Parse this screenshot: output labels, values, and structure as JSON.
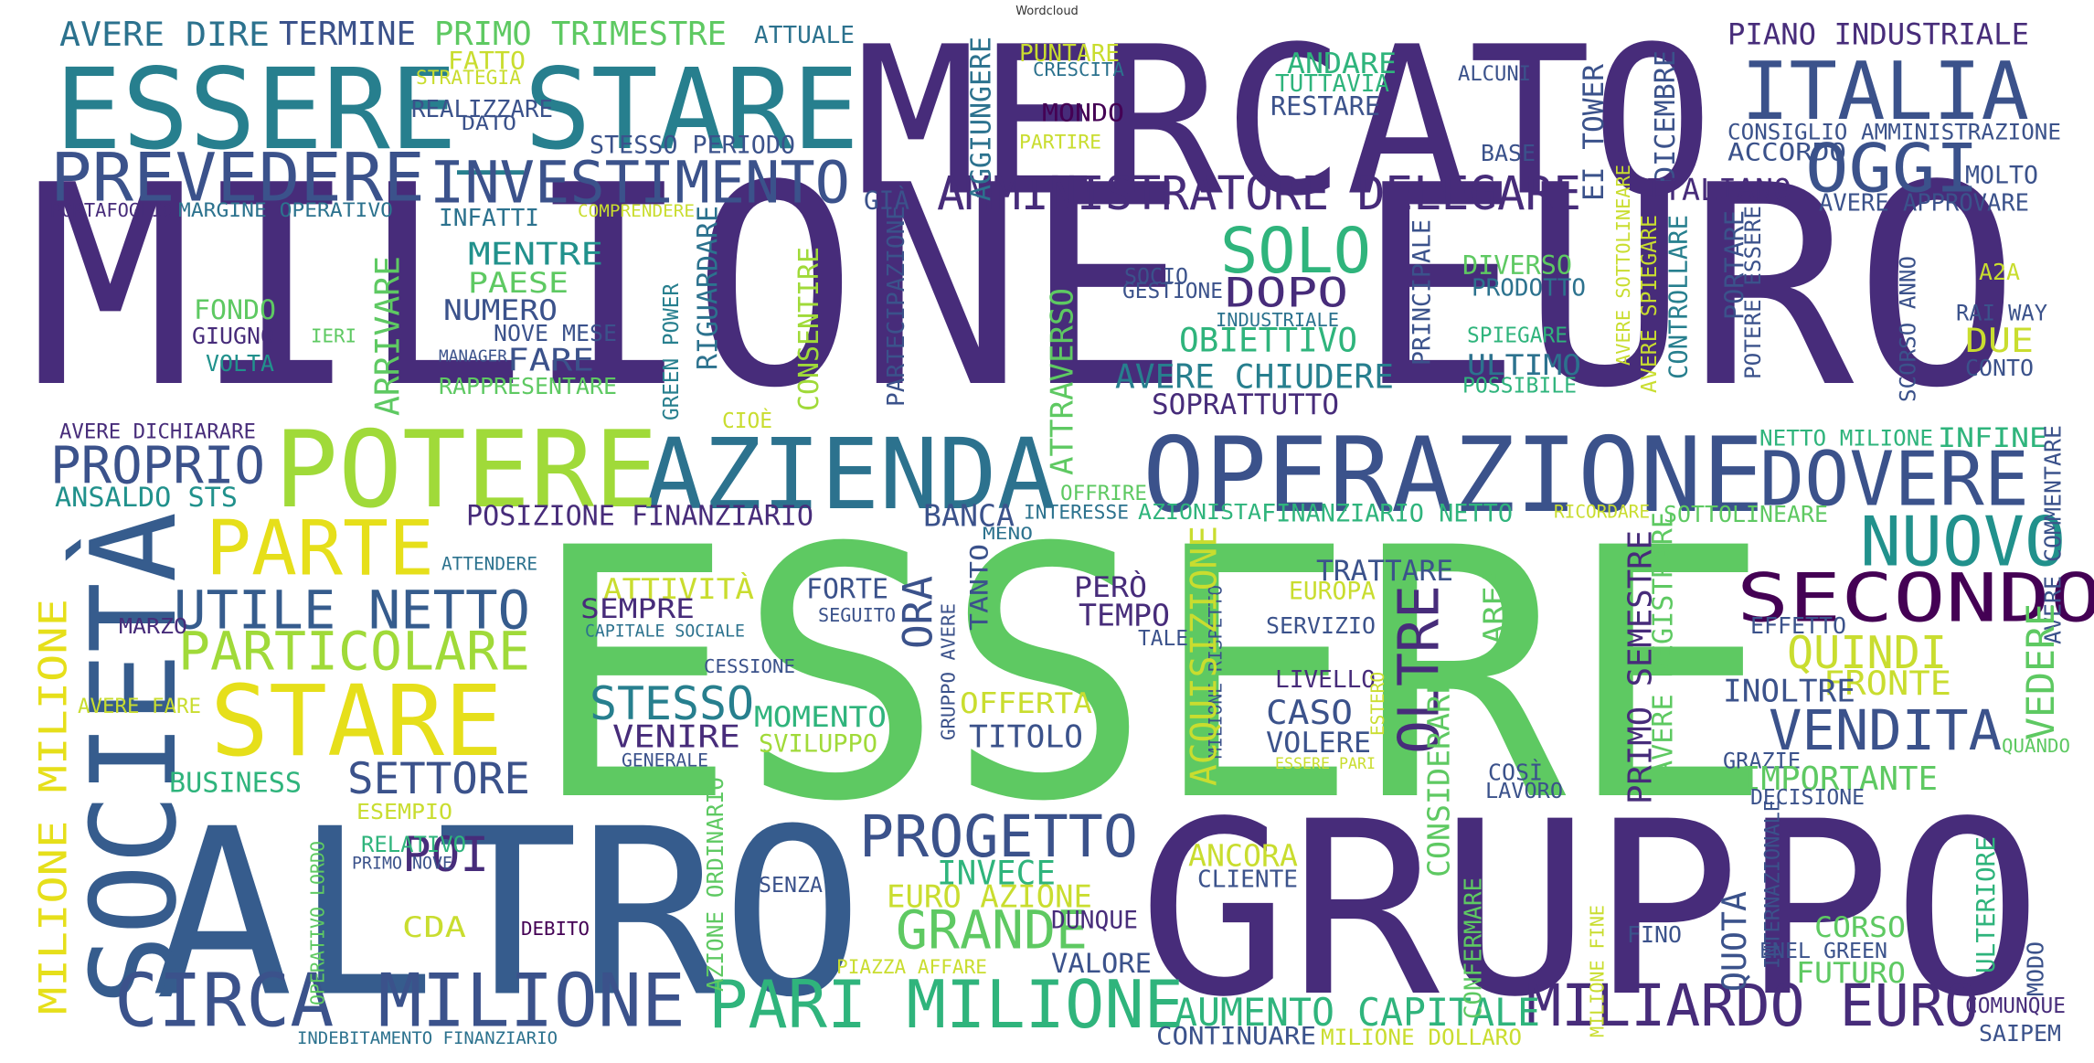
{
  "title": "Wordcloud",
  "palette": {
    "deep": "#472c7a",
    "indigo": "#46327e",
    "blue": "#365c8d",
    "teal": "#277f8e",
    "green": "#1fa187",
    "lime": "#5ec962",
    "yellow": "#c9dd2f",
    "gold": "#e6df1a",
    "dark": "#440154"
  },
  "words": [
    {
      "text": "MILIONE EURO",
      "color": "#472c7a"
    },
    {
      "text": "ESSERE",
      "color": "#5ec962"
    },
    {
      "text": "MERCATO",
      "color": "#472c7a"
    },
    {
      "text": "GRUPPO",
      "color": "#472c7a"
    },
    {
      "text": "ALTRO",
      "color": "#365c8d"
    },
    {
      "text": "ESSERE_STARE",
      "color": "#277f8e"
    },
    {
      "text": "SOCIETÀ",
      "color": "#365c8d"
    },
    {
      "text": "ITALIA",
      "color": "#3b528b"
    },
    {
      "text": "OPERAZIONE",
      "color": "#3b528b"
    },
    {
      "text": "AZIENDA",
      "color": "#2c728e"
    },
    {
      "text": "POTERE",
      "color": "#a0da39"
    },
    {
      "text": "STARE",
      "color": "#e6df1a"
    },
    {
      "text": "PARTE",
      "color": "#e6df1a"
    },
    {
      "text": "CIRCA MILIONE",
      "color": "#3b528b"
    },
    {
      "text": "PARI MILIONE",
      "color": "#2fb47c"
    },
    {
      "text": "PREVEDERE",
      "color": "#3b528b"
    },
    {
      "text": "INVESTIMENTO",
      "color": "#3b528b"
    },
    {
      "text": "AMMINISTRATORE DELEGARE",
      "color": "#472c7a"
    },
    {
      "text": "SECONDO",
      "color": "#440154"
    },
    {
      "text": "MILIARDO EURO",
      "color": "#472c7a"
    },
    {
      "text": "NUOVO",
      "color": "#21918c"
    },
    {
      "text": "DOVERE",
      "color": "#3b528b"
    },
    {
      "text": "OGGI",
      "color": "#3b528b"
    },
    {
      "text": "SOLO",
      "color": "#2fb47c"
    },
    {
      "text": "PROGETTO",
      "color": "#3b528b"
    },
    {
      "text": "UTILE NETTO",
      "color": "#365c8d"
    },
    {
      "text": "PARTICOLARE",
      "color": "#a0da39"
    },
    {
      "text": "PROPRIO",
      "color": "#3b528b"
    },
    {
      "text": "VENDITA",
      "color": "#3b528b"
    },
    {
      "text": "GRANDE",
      "color": "#5ec962"
    },
    {
      "text": "OLTRE",
      "color": "#472c7a"
    },
    {
      "text": "MILIONE MILIONE",
      "color": "#e6df1a"
    },
    {
      "text": "AUMENTO CAPITALE",
      "color": "#2fb47c"
    },
    {
      "text": "STESSO",
      "color": "#277f8e"
    },
    {
      "text": "SETTORE",
      "color": "#3b528b"
    },
    {
      "text": "POI",
      "color": "#472c7a"
    },
    {
      "text": "AVERE DIRE",
      "color": "#2c728e"
    },
    {
      "text": "TERMINE",
      "color": "#3b528b"
    },
    {
      "text": "PRIMO TRIMESTRE",
      "color": "#5ec962"
    },
    {
      "text": "ATTUALE",
      "color": "#2c728e"
    },
    {
      "text": "PIANO INDUSTRIALE",
      "color": "#472c7a"
    },
    {
      "text": "FATTO",
      "color": "#c9dd2f"
    },
    {
      "text": "STRATEGIA",
      "color": "#c9dd2f"
    },
    {
      "text": "REALIZZARE",
      "color": "#3b528b"
    },
    {
      "text": "DATO",
      "color": "#3b528b"
    },
    {
      "text": "STESSO PERIODO",
      "color": "#3b528b"
    },
    {
      "text": "PUNTARE",
      "color": "#c9dd2f"
    },
    {
      "text": "CRESCITA",
      "color": "#2c728e"
    },
    {
      "text": "ANDARE",
      "color": "#2fb47c"
    },
    {
      "text": "TUTTAVIA",
      "color": "#2fb47c"
    },
    {
      "text": "RESTARE",
      "color": "#3b528b"
    },
    {
      "text": "ALCUNI",
      "color": "#3b528b"
    },
    {
      "text": "MONDO",
      "color": "#440154"
    },
    {
      "text": "PARTIRE",
      "color": "#c9dd2f"
    },
    {
      "text": "AGGIUNGERE",
      "color": "#2c728e"
    },
    {
      "text": "BASE",
      "color": "#3b528b"
    },
    {
      "text": "EI TOWER",
      "color": "#3b528b"
    },
    {
      "text": "DICEMBRE",
      "color": "#3b528b"
    },
    {
      "text": "CONSIGLIO AMMINISTRAZIONE",
      "color": "#3b528b"
    },
    {
      "text": "ACCORDO",
      "color": "#3b528b"
    },
    {
      "text": "MOLTO",
      "color": "#3b528b"
    },
    {
      "text": "AVERE APPROVARE",
      "color": "#3b528b"
    },
    {
      "text": "PORTAFOGLIO",
      "color": "#472c7a"
    },
    {
      "text": "MARGINE OPERATIVO",
      "color": "#2c728e"
    },
    {
      "text": "COMPRENDERE",
      "color": "#c9dd2f"
    },
    {
      "text": "INFATTI",
      "color": "#2c728e"
    },
    {
      "text": "GIÀ",
      "color": "#3b528b"
    },
    {
      "text": "ITALIANO",
      "color": "#472c7a"
    },
    {
      "text": "MENTRE",
      "color": "#21918c"
    },
    {
      "text": "PAESE",
      "color": "#5ec962"
    },
    {
      "text": "NUMERO",
      "color": "#3b528b"
    },
    {
      "text": "FARE",
      "color": "#3b528b"
    },
    {
      "text": "NOVE MESE",
      "color": "#3b528b"
    },
    {
      "text": "MANAGER",
      "color": "#3b528b"
    },
    {
      "text": "RAPPRESENTARE",
      "color": "#5ec962"
    },
    {
      "text": "FONDO",
      "color": "#5ec962"
    },
    {
      "text": "GIUGNO",
      "color": "#472c7a"
    },
    {
      "text": "IERI",
      "color": "#5ec962"
    },
    {
      "text": "VOLTA",
      "color": "#21918c"
    },
    {
      "text": "ARRIVARE",
      "color": "#5ec962"
    },
    {
      "text": "GREEN POWER",
      "color": "#277f8e"
    },
    {
      "text": "RIGUARDARE",
      "color": "#2c728e"
    },
    {
      "text": "CONSENTIRE",
      "color": "#a0da39"
    },
    {
      "text": "PARTECIPAZIONE",
      "color": "#3b528b"
    },
    {
      "text": "ATTRAVERSO",
      "color": "#5ec962"
    },
    {
      "text": "SOCIO",
      "color": "#3b528b"
    },
    {
      "text": "GESTIONE",
      "color": "#3b528b"
    },
    {
      "text": "DOPO",
      "color": "#472c7a"
    },
    {
      "text": "INDUSTRIALE",
      "color": "#2c728e"
    },
    {
      "text": "OBIETTIVO",
      "color": "#2fb47c"
    },
    {
      "text": "AVERE CHIUDERE",
      "color": "#277f8e"
    },
    {
      "text": "SOPRATTUTTO",
      "color": "#472c7a"
    },
    {
      "text": "PRINCIPALE",
      "color": "#3b528b"
    },
    {
      "text": "DIVERSO",
      "color": "#5ec962"
    },
    {
      "text": "PRODOTTO",
      "color": "#2c728e"
    },
    {
      "text": "SPIEGARE",
      "color": "#2fb47c"
    },
    {
      "text": "ULTIMO",
      "color": "#2c728e"
    },
    {
      "text": "POSSIBILE",
      "color": "#2fb47c"
    },
    {
      "text": "AVERE SOTTOLINEARE",
      "color": "#c9dd2f"
    },
    {
      "text": "AVERE SPIEGARE",
      "color": "#c9dd2f"
    },
    {
      "text": "CONTROLLARE",
      "color": "#277f8e"
    },
    {
      "text": "PORTARE",
      "color": "#3b528b"
    },
    {
      "text": "POTERE ESSERE",
      "color": "#3b528b"
    },
    {
      "text": "SCORSO ANNO",
      "color": "#3b528b"
    },
    {
      "text": "A2A",
      "color": "#c9dd2f"
    },
    {
      "text": "RAI WAY",
      "color": "#3b528b"
    },
    {
      "text": "DUE",
      "color": "#c9dd2f"
    },
    {
      "text": "CONTO",
      "color": "#3b528b"
    },
    {
      "text": "AVERE DICHIARARE",
      "color": "#472c7a"
    },
    {
      "text": "CIOÈ",
      "color": "#c9dd2f"
    },
    {
      "text": "OFFRIRE",
      "color": "#5ec962"
    },
    {
      "text": "NETTO MILIONE",
      "color": "#2fb47c"
    },
    {
      "text": "INFINE",
      "color": "#2fb47c"
    },
    {
      "text": "AVERE COMMENTARE",
      "color": "#3b528b"
    },
    {
      "text": "ANSALDO STS",
      "color": "#21918c"
    },
    {
      "text": "POSIZIONE FINANZIARIO",
      "color": "#472c7a"
    },
    {
      "text": "BANCA",
      "color": "#3b528b"
    },
    {
      "text": "INTERESSE",
      "color": "#2c728e"
    },
    {
      "text": "AZIONISTA",
      "color": "#2fb47c"
    },
    {
      "text": "FINANZIARIO NETTO",
      "color": "#2fb47c"
    },
    {
      "text": "RICORDARE",
      "color": "#c9dd2f"
    },
    {
      "text": "SOTTOLINEARE",
      "color": "#5ec962"
    },
    {
      "text": "MENO",
      "color": "#2c728e"
    },
    {
      "text": "ATTENDERE",
      "color": "#2c728e"
    },
    {
      "text": "ATTIVITÀ",
      "color": "#c9dd2f"
    },
    {
      "text": "FORTE",
      "color": "#3b528b"
    },
    {
      "text": "TANTO",
      "color": "#3b528b"
    },
    {
      "text": "PERÒ",
      "color": "#472c7a"
    },
    {
      "text": "TEMPO",
      "color": "#472c7a"
    },
    {
      "text": "SEMPRE",
      "color": "#472c7a"
    },
    {
      "text": "CAPITALE SOCIALE",
      "color": "#2c728e"
    },
    {
      "text": "SEGUITO",
      "color": "#3b528b"
    },
    {
      "text": "ORA",
      "color": "#3b528b"
    },
    {
      "text": "GRUPPO AVERE",
      "color": "#3b528b"
    },
    {
      "text": "MILIONE RISPETTO",
      "color": "#3b528b"
    },
    {
      "text": "ACQUISIZIONE",
      "color": "#c9dd2f"
    },
    {
      "text": "TALE",
      "color": "#3b528b"
    },
    {
      "text": "MARZO",
      "color": "#472c7a"
    },
    {
      "text": "CESSIONE",
      "color": "#3b528b"
    },
    {
      "text": "TRATTARE",
      "color": "#3b528b"
    },
    {
      "text": "EUROPA",
      "color": "#c9dd2f"
    },
    {
      "text": "SERVIZIO",
      "color": "#3b528b"
    },
    {
      "text": "AREA",
      "color": "#5ec962"
    },
    {
      "text": "PRIMO SEMESTRE",
      "color": "#472c7a"
    },
    {
      "text": "AVERE REGISTRARE",
      "color": "#5ec962"
    },
    {
      "text": "EFFETTO",
      "color": "#3b528b"
    },
    {
      "text": "QUINDI",
      "color": "#c9dd2f"
    },
    {
      "text": "FRONTE",
      "color": "#c9dd2f"
    },
    {
      "text": "VEDERE",
      "color": "#5ec962"
    },
    {
      "text": "INOLTRE",
      "color": "#3b528b"
    },
    {
      "text": "AVERE FARE",
      "color": "#c9dd2f"
    },
    {
      "text": "MOMENTO",
      "color": "#2fb47c"
    },
    {
      "text": "OFFERTA",
      "color": "#c9dd2f"
    },
    {
      "text": "LIVELLO",
      "color": "#472c7a"
    },
    {
      "text": "ESTERO",
      "color": "#c9dd2f"
    },
    {
      "text": "CASO",
      "color": "#3b528b"
    },
    {
      "text": "VOLERE",
      "color": "#3b528b"
    },
    {
      "text": "VENIRE",
      "color": "#472c7a"
    },
    {
      "text": "SVILUPPO",
      "color": "#a0da39"
    },
    {
      "text": "TITOLO",
      "color": "#3b528b"
    },
    {
      "text": "GENERALE",
      "color": "#3b528b"
    },
    {
      "text": "ESSERE PARI",
      "color": "#c9dd2f"
    },
    {
      "text": "QUANDO",
      "color": "#5ec962"
    },
    {
      "text": "GRAZIE",
      "color": "#3b528b"
    },
    {
      "text": "CONSIDERARE",
      "color": "#5ec962"
    },
    {
      "text": "COSÌ",
      "color": "#3b528b"
    },
    {
      "text": "LAVORO",
      "color": "#3b528b"
    },
    {
      "text": "IMPORTANTE",
      "color": "#5ec962"
    },
    {
      "text": "DECISIONE",
      "color": "#3b528b"
    },
    {
      "text": "BUSINESS",
      "color": "#2fb47c"
    },
    {
      "text": "ESEMPIO",
      "color": "#c9dd2f"
    },
    {
      "text": "RELATIVO",
      "color": "#2fb47c"
    },
    {
      "text": "PRIMO NOVE",
      "color": "#3b528b"
    },
    {
      "text": "OPERATIVO LORDO",
      "color": "#5ec962"
    },
    {
      "text": "CDA",
      "color": "#c9dd2f"
    },
    {
      "text": "DEBITO",
      "color": "#440154"
    },
    {
      "text": "AZIONE ORDINARIO",
      "color": "#5ec962"
    },
    {
      "text": "SENZA",
      "color": "#3b528b"
    },
    {
      "text": "INVECE",
      "color": "#2fb47c"
    },
    {
      "text": "EURO AZIONE",
      "color": "#c9dd2f"
    },
    {
      "text": "DUNQUE",
      "color": "#472c7a"
    },
    {
      "text": "PIAZZA AFFARE",
      "color": "#c9dd2f"
    },
    {
      "text": "VALORE",
      "color": "#3b528b"
    },
    {
      "text": "ANCORA",
      "color": "#c9dd2f"
    },
    {
      "text": "CLIENTE",
      "color": "#3b528b"
    },
    {
      "text": "CONFERMARE",
      "color": "#5ec962"
    },
    {
      "text": "MILIONE FINE",
      "color": "#c9dd2f"
    },
    {
      "text": "INTERNAZIONALE",
      "color": "#3b528b"
    },
    {
      "text": "QUOTA",
      "color": "#3b528b"
    },
    {
      "text": "FINO",
      "color": "#3b528b"
    },
    {
      "text": "CORSO",
      "color": "#5ec962"
    },
    {
      "text": "ENEL GREEN",
      "color": "#3b528b"
    },
    {
      "text": "FUTURO",
      "color": "#5ec962"
    },
    {
      "text": "ULTERIORE",
      "color": "#2fb47c"
    },
    {
      "text": "MODO",
      "color": "#3b528b"
    },
    {
      "text": "COMUNQUE",
      "color": "#472c7a"
    },
    {
      "text": "SAIPEM",
      "color": "#3b528b"
    },
    {
      "text": "CONTINUARE",
      "color": "#3b528b"
    },
    {
      "text": "MILIONE DOLLARO",
      "color": "#c9dd2f"
    },
    {
      "text": "INDEBITAMENTO FINANZIARIO",
      "color": "#2c728e"
    }
  ]
}
